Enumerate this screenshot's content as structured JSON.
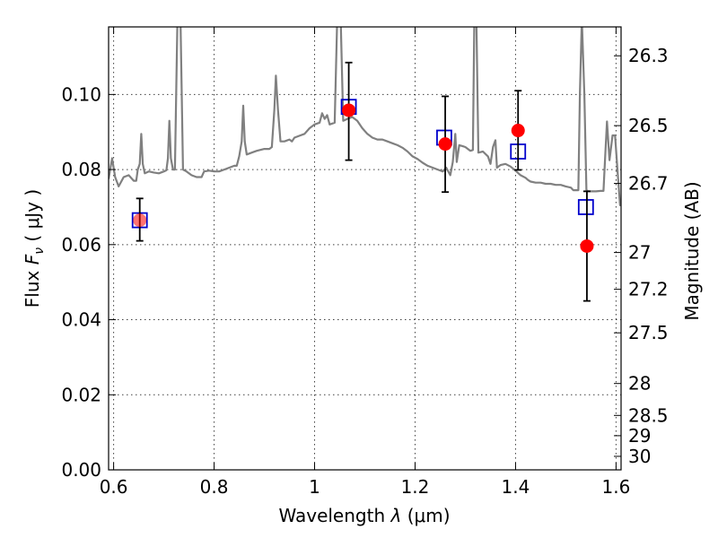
{
  "chart_data": {
    "type": "scatter",
    "x_label_prefix": "Wavelength",
    "x_symbol": "λ",
    "x_unit": "(μm)",
    "y_label_prefix": "Flux",
    "y_symbol": "F",
    "y_symbol_sub": "ν",
    "y_unit": "( μJy )",
    "y2_label": "Magnitude (AB)",
    "xlim": [
      0.59,
      1.61
    ],
    "ylim": [
      0.0,
      0.118
    ],
    "x_ticks": [
      0.6,
      0.8,
      1.0,
      1.2,
      1.4,
      1.6
    ],
    "x_tick_labels": [
      "0.6",
      "0.8",
      "1",
      "1.2",
      "1.4",
      "1.6"
    ],
    "y_ticks": [
      0.0,
      0.02,
      0.04,
      0.06,
      0.08,
      0.1
    ],
    "y_tick_labels": [
      "0.00",
      "0.02",
      "0.04",
      "0.06",
      "0.08",
      "0.10"
    ],
    "y2_ticks": [
      {
        "label": "26.3",
        "flux": 0.1103
      },
      {
        "label": "26.5",
        "flux": 0.0917
      },
      {
        "label": "26.7",
        "flux": 0.0763
      },
      {
        "label": "27",
        "flux": 0.0579
      },
      {
        "label": "27.2",
        "flux": 0.0481
      },
      {
        "label": "27.5",
        "flux": 0.0365
      },
      {
        "label": "28",
        "flux": 0.023
      },
      {
        "label": "28.5",
        "flux": 0.0145
      },
      {
        "label": "29",
        "flux": 0.0091
      },
      {
        "label": "30",
        "flux": 0.0036
      }
    ],
    "grid": true,
    "series": [
      {
        "kind": "line",
        "color": "#808080",
        "points": [
          [
            0.59,
            0.0775
          ],
          [
            0.597,
            0.083
          ],
          [
            0.603,
            0.078
          ],
          [
            0.61,
            0.0755
          ],
          [
            0.62,
            0.078
          ],
          [
            0.63,
            0.0785
          ],
          [
            0.64,
            0.077
          ],
          [
            0.645,
            0.077
          ],
          [
            0.648,
            0.08
          ],
          [
            0.652,
            0.0815
          ],
          [
            0.655,
            0.0895
          ],
          [
            0.658,
            0.0815
          ],
          [
            0.662,
            0.079
          ],
          [
            0.67,
            0.0795
          ],
          [
            0.68,
            0.0792
          ],
          [
            0.69,
            0.079
          ],
          [
            0.7,
            0.0795
          ],
          [
            0.705,
            0.0798
          ],
          [
            0.708,
            0.083
          ],
          [
            0.711,
            0.093
          ],
          [
            0.714,
            0.083
          ],
          [
            0.718,
            0.08
          ],
          [
            0.722,
            0.08
          ],
          [
            0.727,
            0.12
          ],
          [
            0.733,
            0.12
          ],
          [
            0.738,
            0.08
          ],
          [
            0.745,
            0.0795
          ],
          [
            0.755,
            0.0785
          ],
          [
            0.765,
            0.078
          ],
          [
            0.775,
            0.078
          ],
          [
            0.78,
            0.0795
          ],
          [
            0.79,
            0.0797
          ],
          [
            0.8,
            0.0795
          ],
          [
            0.81,
            0.0795
          ],
          [
            0.82,
            0.08
          ],
          [
            0.83,
            0.0805
          ],
          [
            0.84,
            0.081
          ],
          [
            0.845,
            0.081
          ],
          [
            0.85,
            0.0835
          ],
          [
            0.855,
            0.0875
          ],
          [
            0.858,
            0.097
          ],
          [
            0.861,
            0.0875
          ],
          [
            0.865,
            0.084
          ],
          [
            0.875,
            0.0845
          ],
          [
            0.885,
            0.085
          ],
          [
            0.9,
            0.0855
          ],
          [
            0.91,
            0.0855
          ],
          [
            0.915,
            0.086
          ],
          [
            0.92,
            0.096
          ],
          [
            0.923,
            0.105
          ],
          [
            0.927,
            0.096
          ],
          [
            0.932,
            0.0875
          ],
          [
            0.94,
            0.0875
          ],
          [
            0.95,
            0.088
          ],
          [
            0.955,
            0.0875
          ],
          [
            0.96,
            0.0885
          ],
          [
            0.97,
            0.089
          ],
          [
            0.98,
            0.0895
          ],
          [
            0.99,
            0.091
          ],
          [
            1.0,
            0.092
          ],
          [
            1.01,
            0.0925
          ],
          [
            1.015,
            0.095
          ],
          [
            1.02,
            0.0935
          ],
          [
            1.025,
            0.0945
          ],
          [
            1.03,
            0.092
          ],
          [
            1.04,
            0.0925
          ],
          [
            1.045,
            0.12
          ],
          [
            1.052,
            0.12
          ],
          [
            1.057,
            0.093
          ],
          [
            1.065,
            0.0935
          ],
          [
            1.075,
            0.094
          ],
          [
            1.085,
            0.093
          ],
          [
            1.095,
            0.091
          ],
          [
            1.105,
            0.0895
          ],
          [
            1.115,
            0.0885
          ],
          [
            1.125,
            0.088
          ],
          [
            1.135,
            0.088
          ],
          [
            1.145,
            0.0875
          ],
          [
            1.155,
            0.087
          ],
          [
            1.165,
            0.0865
          ],
          [
            1.175,
            0.0858
          ],
          [
            1.185,
            0.0848
          ],
          [
            1.195,
            0.0835
          ],
          [
            1.205,
            0.0828
          ],
          [
            1.215,
            0.0818
          ],
          [
            1.225,
            0.081
          ],
          [
            1.235,
            0.0805
          ],
          [
            1.245,
            0.08
          ],
          [
            1.255,
            0.0795
          ],
          [
            1.262,
            0.0805
          ],
          [
            1.27,
            0.0785
          ],
          [
            1.275,
            0.082
          ],
          [
            1.28,
            0.0895
          ],
          [
            1.283,
            0.082
          ],
          [
            1.288,
            0.0865
          ],
          [
            1.295,
            0.0862
          ],
          [
            1.3,
            0.086
          ],
          [
            1.305,
            0.0855
          ],
          [
            1.31,
            0.085
          ],
          [
            1.315,
            0.0852
          ],
          [
            1.318,
            0.12
          ],
          [
            1.322,
            0.12
          ],
          [
            1.326,
            0.0845
          ],
          [
            1.335,
            0.0848
          ],
          [
            1.345,
            0.0835
          ],
          [
            1.35,
            0.0815
          ],
          [
            1.355,
            0.086
          ],
          [
            1.36,
            0.0878
          ],
          [
            1.363,
            0.0805
          ],
          [
            1.37,
            0.0812
          ],
          [
            1.38,
            0.0815
          ],
          [
            1.39,
            0.0808
          ],
          [
            1.4,
            0.0797
          ],
          [
            1.41,
            0.0785
          ],
          [
            1.42,
            0.0778
          ],
          [
            1.425,
            0.0772
          ],
          [
            1.43,
            0.0768
          ],
          [
            1.44,
            0.0765
          ],
          [
            1.45,
            0.0765
          ],
          [
            1.46,
            0.0762
          ],
          [
            1.47,
            0.0762
          ],
          [
            1.48,
            0.0759
          ],
          [
            1.49,
            0.0759
          ],
          [
            1.5,
            0.0755
          ],
          [
            1.51,
            0.0752
          ],
          [
            1.515,
            0.0745
          ],
          [
            1.52,
            0.0745
          ],
          [
            1.525,
            0.0745
          ],
          [
            1.528,
            0.1
          ],
          [
            1.532,
            0.12
          ],
          [
            1.537,
            0.1
          ],
          [
            1.541,
            0.0745
          ],
          [
            1.545,
            0.0742
          ],
          [
            1.55,
            0.0742
          ],
          [
            1.555,
            0.0742
          ],
          [
            1.56,
            0.0742
          ],
          [
            1.57,
            0.0743
          ],
          [
            1.575,
            0.0743
          ],
          [
            1.578,
            0.0825
          ],
          [
            1.582,
            0.0928
          ],
          [
            1.587,
            0.0825
          ],
          [
            1.593,
            0.0891
          ],
          [
            1.598,
            0.0891
          ],
          [
            1.603,
            0.0795
          ],
          [
            1.608,
            0.0705
          ],
          [
            1.61,
            0.0705
          ]
        ]
      },
      {
        "kind": "scatter-square",
        "color": "#0000cc",
        "x": [
          0.652,
          1.068,
          1.258,
          1.405,
          1.54
        ],
        "y": [
          0.0665,
          0.0967,
          0.0885,
          0.0848,
          0.07
        ]
      },
      {
        "kind": "scatter-circle",
        "color": "#ff0000",
        "x": [
          0.652,
          1.068,
          1.26,
          1.405,
          1.542
        ],
        "y": [
          0.0665,
          0.0958,
          0.0868,
          0.0904,
          0.0596
        ],
        "yerr_low": [
          0.0055,
          0.0133,
          0.0128,
          0.0105,
          0.0146
        ],
        "yerr_high": [
          0.0058,
          0.0127,
          0.0127,
          0.0106,
          0.0146
        ]
      }
    ]
  }
}
